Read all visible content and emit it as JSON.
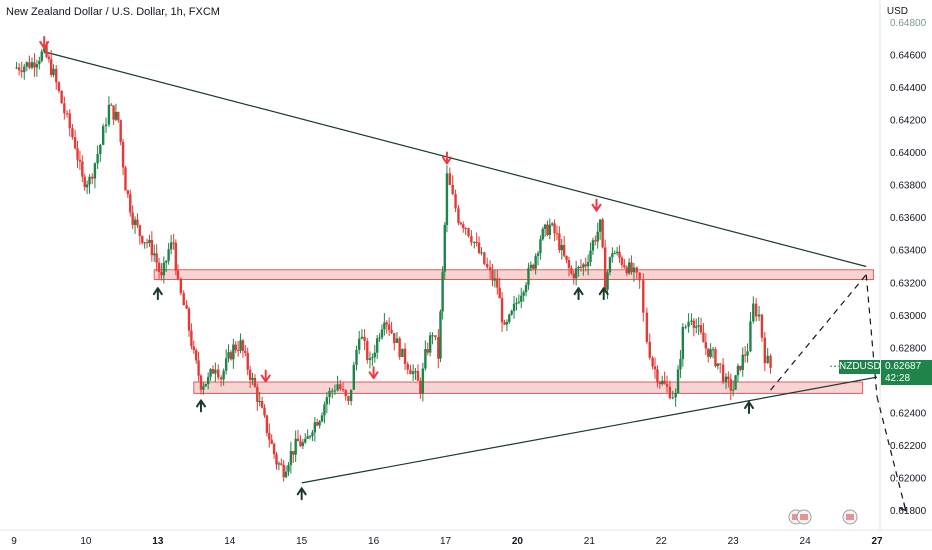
{
  "header": {
    "title": "New Zealand Dollar / U.S. Dollar, 1h, FXCM",
    "currency": "USD"
  },
  "badge": {
    "symbol": "NZDUSD",
    "price": "0.62687",
    "countdown": "42:28"
  },
  "colors": {
    "candle_up": "#1e8449",
    "candle_down": "#e53935",
    "trend_line": "#1b3a2b",
    "zone_fill": "#f6c4c4",
    "zone_stroke": "#e05a5a",
    "arrow_red": "#f23645",
    "arrow_black": "#1b3a2b",
    "badge": "#1e8449"
  },
  "chart_data": {
    "type": "candlestick",
    "title": "New Zealand Dollar / U.S. Dollar, 1h, FXCM",
    "ylabel": "USD",
    "ylim": [
      0.618,
      0.648
    ],
    "xlim": [
      9.0,
      27.0
    ],
    "y_ticks": [
      "0.64800",
      "0.64600",
      "0.64400",
      "0.64200",
      "0.64000",
      "0.63800",
      "0.63600",
      "0.63400",
      "0.63200",
      "0.63000",
      "0.62800",
      "0.62600",
      "0.62400",
      "0.62200",
      "0.62000",
      "0.61800"
    ],
    "y_tick_values": [
      0.648,
      0.646,
      0.644,
      0.642,
      0.64,
      0.638,
      0.636,
      0.634,
      0.632,
      0.63,
      0.628,
      0.626,
      0.624,
      0.622,
      0.62,
      0.618
    ],
    "x_ticks": [
      {
        "label": "9",
        "value": 9.0,
        "bold": false
      },
      {
        "label": "10",
        "value": 10.0,
        "bold": false
      },
      {
        "label": "13",
        "value": 11.0,
        "bold": true
      },
      {
        "label": "14",
        "value": 12.0,
        "bold": false
      },
      {
        "label": "15",
        "value": 13.0,
        "bold": false
      },
      {
        "label": "16",
        "value": 14.0,
        "bold": false
      },
      {
        "label": "17",
        "value": 15.0,
        "bold": false
      },
      {
        "label": "20",
        "value": 16.0,
        "bold": true
      },
      {
        "label": "21",
        "value": 17.0,
        "bold": false
      },
      {
        "label": "22",
        "value": 18.0,
        "bold": false
      },
      {
        "label": "23",
        "value": 19.0,
        "bold": false
      },
      {
        "label": "24",
        "value": 20.0,
        "bold": false
      },
      {
        "label": "27",
        "value": 21.0,
        "bold": true
      }
    ],
    "price_path": [
      [
        9.0,
        0.6452
      ],
      [
        9.25,
        0.6455
      ],
      [
        9.42,
        0.6462
      ],
      [
        9.55,
        0.6448
      ],
      [
        9.7,
        0.6425
      ],
      [
        9.85,
        0.6405
      ],
      [
        9.95,
        0.6383
      ],
      [
        10.05,
        0.6383
      ],
      [
        10.2,
        0.6405
      ],
      [
        10.32,
        0.6428
      ],
      [
        10.45,
        0.642
      ],
      [
        10.55,
        0.638
      ],
      [
        10.65,
        0.636
      ],
      [
        10.75,
        0.635
      ],
      [
        10.85,
        0.6345
      ],
      [
        10.95,
        0.6338
      ],
      [
        11.05,
        0.6322
      ],
      [
        11.15,
        0.634
      ],
      [
        11.22,
        0.6345
      ],
      [
        11.28,
        0.6318
      ],
      [
        11.4,
        0.63
      ],
      [
        11.5,
        0.6275
      ],
      [
        11.6,
        0.6258
      ],
      [
        11.7,
        0.626
      ],
      [
        11.8,
        0.627
      ],
      [
        11.88,
        0.6262
      ],
      [
        11.95,
        0.627
      ],
      [
        12.05,
        0.628
      ],
      [
        12.15,
        0.6282
      ],
      [
        12.25,
        0.6268
      ],
      [
        12.35,
        0.6255
      ],
      [
        12.45,
        0.624
      ],
      [
        12.55,
        0.6225
      ],
      [
        12.65,
        0.621
      ],
      [
        12.75,
        0.6205
      ],
      [
        12.85,
        0.6215
      ],
      [
        12.95,
        0.6222
      ],
      [
        13.05,
        0.622
      ],
      [
        13.15,
        0.6232
      ],
      [
        13.25,
        0.6238
      ],
      [
        13.35,
        0.625
      ],
      [
        13.5,
        0.6258
      ],
      [
        13.65,
        0.6245
      ],
      [
        13.8,
        0.629
      ],
      [
        13.95,
        0.627
      ],
      [
        14.05,
        0.6285
      ],
      [
        14.15,
        0.63
      ],
      [
        14.25,
        0.629
      ],
      [
        14.4,
        0.6275
      ],
      [
        14.55,
        0.6265
      ],
      [
        14.65,
        0.6255
      ],
      [
        14.72,
        0.6275
      ],
      [
        14.82,
        0.629
      ],
      [
        14.9,
        0.6275
      ],
      [
        14.96,
        0.6325
      ],
      [
        15.02,
        0.6385
      ],
      [
        15.1,
        0.6372
      ],
      [
        15.18,
        0.636
      ],
      [
        15.28,
        0.6355
      ],
      [
        15.4,
        0.6345
      ],
      [
        15.5,
        0.6335
      ],
      [
        15.62,
        0.6325
      ],
      [
        15.72,
        0.6318
      ],
      [
        15.82,
        0.629
      ],
      [
        15.92,
        0.63
      ],
      [
        16.02,
        0.6312
      ],
      [
        16.12,
        0.6322
      ],
      [
        16.22,
        0.6332
      ],
      [
        16.32,
        0.6348
      ],
      [
        16.45,
        0.6355
      ],
      [
        16.55,
        0.6348
      ],
      [
        16.65,
        0.6335
      ],
      [
        16.75,
        0.6325
      ],
      [
        16.85,
        0.6328
      ],
      [
        16.95,
        0.6332
      ],
      [
        17.05,
        0.6345
      ],
      [
        17.15,
        0.6355
      ],
      [
        17.22,
        0.632
      ],
      [
        17.32,
        0.634
      ],
      [
        17.42,
        0.6335
      ],
      [
        17.52,
        0.633
      ],
      [
        17.62,
        0.6325
      ],
      [
        17.7,
        0.632
      ],
      [
        17.75,
        0.63
      ],
      [
        17.8,
        0.6285
      ],
      [
        17.88,
        0.627
      ],
      [
        17.98,
        0.626
      ],
      [
        18.08,
        0.6255
      ],
      [
        18.2,
        0.625
      ],
      [
        18.3,
        0.629
      ],
      [
        18.42,
        0.63
      ],
      [
        18.52,
        0.629
      ],
      [
        18.62,
        0.628
      ],
      [
        18.72,
        0.6275
      ],
      [
        18.82,
        0.6268
      ],
      [
        18.9,
        0.6258
      ],
      [
        19.0,
        0.6255
      ],
      [
        19.1,
        0.627
      ],
      [
        19.2,
        0.628
      ],
      [
        19.28,
        0.6305
      ],
      [
        19.36,
        0.63
      ],
      [
        19.44,
        0.6275
      ],
      [
        19.52,
        0.6268
      ]
    ],
    "trendlines": [
      {
        "from": [
          9.42,
          0.6462
        ],
        "to": [
          20.85,
          0.633
        ],
        "style": "solid"
      },
      {
        "from": [
          13.0,
          0.6197
        ],
        "to": [
          21.0,
          0.6262
        ],
        "style": "solid"
      }
    ],
    "zones": [
      {
        "x": [
          10.95,
          20.95
        ],
        "y": [
          0.6322,
          0.6328
        ]
      },
      {
        "x": [
          11.5,
          20.8
        ],
        "y": [
          0.6252,
          0.6259
        ]
      }
    ],
    "projection": [
      [
        19.52,
        0.6254
      ],
      [
        20.85,
        0.6325
      ],
      [
        21.0,
        0.625
      ],
      [
        21.4,
        0.618
      ]
    ],
    "markers_down": [
      [
        9.42,
        0.6468
      ],
      [
        12.5,
        0.6263
      ],
      [
        14.0,
        0.6265
      ],
      [
        15.02,
        0.6397
      ],
      [
        17.1,
        0.6368
      ]
    ],
    "markers_up": [
      [
        11.0,
        0.6313
      ],
      [
        11.6,
        0.6244
      ],
      [
        13.0,
        0.619
      ],
      [
        16.85,
        0.6313
      ],
      [
        17.2,
        0.6313
      ],
      [
        19.22,
        0.6243
      ]
    ],
    "last_price": 0.62687
  }
}
